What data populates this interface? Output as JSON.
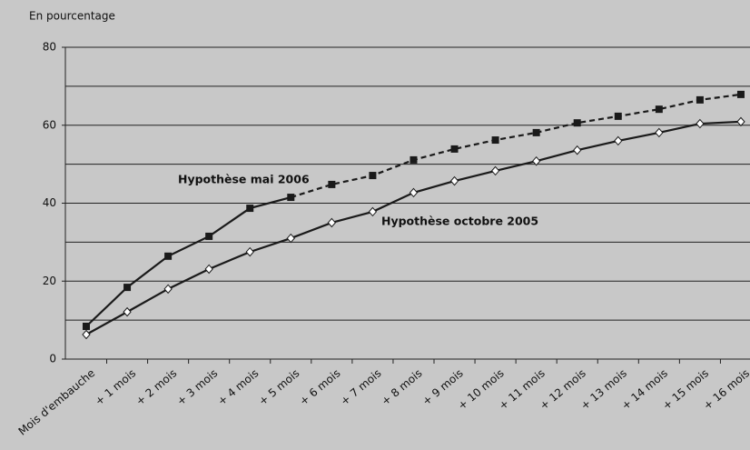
{
  "chart_data": {
    "type": "line",
    "y_label": "En pourcentage",
    "categories": [
      "Mois d'embauche",
      "+ 1 mois",
      "+ 2 mois",
      "+ 3 mois",
      "+ 4 mois",
      "+ 5 mois",
      "+ 6 mois",
      "+ 7 mois",
      "+ 8 mois",
      "+ 9 mois",
      "+ 10 mois",
      "+ 11 mois",
      "+ 12 mois",
      "+ 13 mois",
      "+ 14 mois",
      "+ 15 mois",
      "+ 16 mois"
    ],
    "series": [
      {
        "name": "Hypothèse mai 2006",
        "color": "#1a1a1a",
        "marker": "square",
        "dashed_from": 5,
        "values": [
          8.4,
          18.4,
          26.4,
          31.5,
          38.7,
          41.5,
          44.8,
          47.1,
          51.1,
          53.9,
          56.2,
          58.1,
          60.6,
          62.3,
          64.1,
          66.5,
          67.9
        ]
      },
      {
        "name": "Hypothèse octobre 2005",
        "color": "#1a1a1a",
        "marker": "diamond",
        "values": [
          6.3,
          12.1,
          18.0,
          23.1,
          27.5,
          31.0,
          35.0,
          37.8,
          42.7,
          45.7,
          48.3,
          50.8,
          53.6,
          56.0,
          58.1,
          60.4,
          60.9
        ]
      }
    ],
    "ylim": [
      0,
      80
    ],
    "yticks": [
      0,
      20,
      40,
      60,
      80
    ],
    "yminor": [
      10,
      30,
      50,
      70
    ],
    "grid": true
  }
}
